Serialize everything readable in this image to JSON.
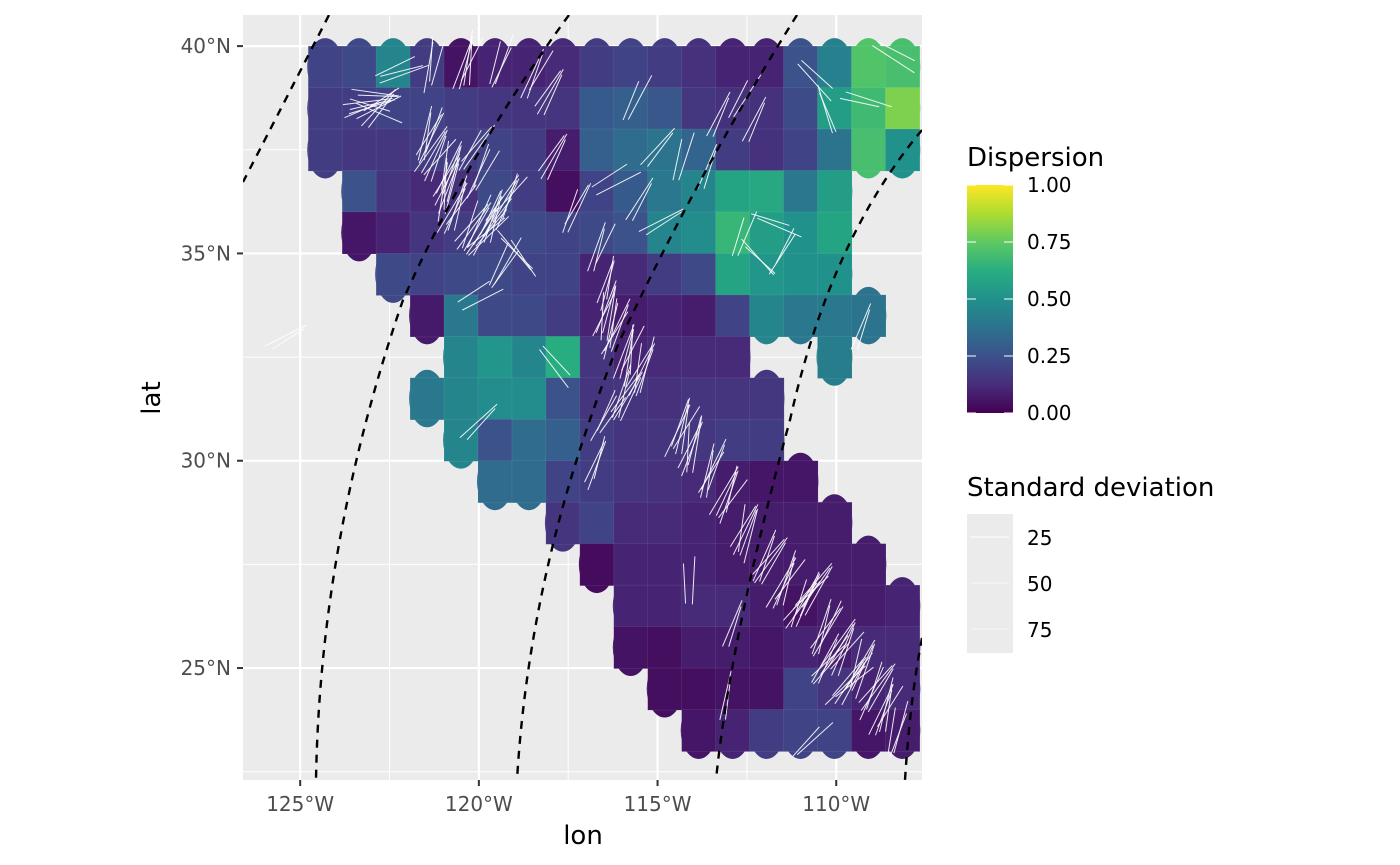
{
  "chart_data": {
    "type": "heatmap",
    "xlabel": "lon",
    "ylabel": "lat",
    "x_range": [
      -126.6,
      -107.6
    ],
    "y_range": [
      22.3,
      40.75
    ],
    "x_ticks": [
      {
        "value": -125,
        "label": "125°W"
      },
      {
        "value": -120,
        "label": "120°W"
      },
      {
        "value": -115,
        "label": "115°W"
      },
      {
        "value": -110,
        "label": "110°W"
      }
    ],
    "y_ticks": [
      {
        "value": 25,
        "label": "25°N"
      },
      {
        "value": 30,
        "label": "30°N"
      },
      {
        "value": 35,
        "label": "35°N"
      },
      {
        "value": 40,
        "label": "40°N"
      }
    ],
    "grid": true,
    "panel_background": "#ebebeb",
    "color_legend": {
      "title": "Dispersion",
      "scale": "viridis",
      "range": [
        0,
        1
      ],
      "breaks": [
        {
          "value": 0.0,
          "label": "0.00"
        },
        {
          "value": 0.25,
          "label": "0.25"
        },
        {
          "value": 0.5,
          "label": "0.50"
        },
        {
          "value": 0.75,
          "label": "0.75"
        },
        {
          "value": 1.0,
          "label": "1.00"
        }
      ]
    },
    "alpha_legend": {
      "title": "Standard deviation",
      "breaks": [
        {
          "value": 25,
          "label": "25"
        },
        {
          "value": 50,
          "label": "50"
        },
        {
          "value": 75,
          "label": "75"
        }
      ]
    },
    "grid_cell": {
      "lon_step": 0.95,
      "lat_step": 1.0
    },
    "cells": [
      [
        39.5,
        -124.3,
        0.2
      ],
      [
        39.5,
        -123.35,
        0.22
      ],
      [
        39.5,
        -122.4,
        0.45
      ],
      [
        39.5,
        -121.45,
        0.18
      ],
      [
        39.5,
        -120.5,
        0.05
      ],
      [
        39.5,
        -119.55,
        0.1
      ],
      [
        39.5,
        -118.6,
        0.1
      ],
      [
        39.5,
        -117.65,
        0.12
      ],
      [
        39.5,
        -116.7,
        0.18
      ],
      [
        39.5,
        -115.75,
        0.2
      ],
      [
        39.5,
        -114.8,
        0.18
      ],
      [
        39.5,
        -113.85,
        0.14
      ],
      [
        39.5,
        -112.9,
        0.1
      ],
      [
        39.5,
        -111.95,
        0.1
      ],
      [
        39.5,
        -111.0,
        0.25
      ],
      [
        39.5,
        -110.05,
        0.43
      ],
      [
        39.5,
        -109.1,
        0.72
      ],
      [
        39.5,
        -108.15,
        0.7
      ],
      [
        38.5,
        -124.3,
        0.18
      ],
      [
        38.5,
        -123.35,
        0.18
      ],
      [
        38.5,
        -122.4,
        0.2
      ],
      [
        38.5,
        -121.45,
        0.2
      ],
      [
        38.5,
        -120.5,
        0.18
      ],
      [
        38.5,
        -119.55,
        0.16
      ],
      [
        38.5,
        -118.6,
        0.15
      ],
      [
        38.5,
        -117.65,
        0.15
      ],
      [
        38.5,
        -116.7,
        0.28
      ],
      [
        38.5,
        -115.75,
        0.3
      ],
      [
        38.5,
        -114.8,
        0.27
      ],
      [
        38.5,
        -113.85,
        0.16
      ],
      [
        38.5,
        -112.9,
        0.14
      ],
      [
        38.5,
        -111.95,
        0.14
      ],
      [
        38.5,
        -111.0,
        0.23
      ],
      [
        38.5,
        -110.05,
        0.55
      ],
      [
        38.5,
        -109.1,
        0.68
      ],
      [
        38.5,
        -108.15,
        0.8
      ],
      [
        37.5,
        -124.3,
        0.18
      ],
      [
        37.5,
        -123.35,
        0.16
      ],
      [
        37.5,
        -122.4,
        0.16
      ],
      [
        37.5,
        -121.45,
        0.18
      ],
      [
        37.5,
        -120.5,
        0.18
      ],
      [
        37.5,
        -119.55,
        0.2
      ],
      [
        37.5,
        -118.6,
        0.18
      ],
      [
        37.5,
        -117.65,
        0.08
      ],
      [
        37.5,
        -116.7,
        0.3
      ],
      [
        37.5,
        -115.75,
        0.35
      ],
      [
        37.5,
        -114.8,
        0.38
      ],
      [
        37.5,
        -113.85,
        0.32
      ],
      [
        37.5,
        -112.9,
        0.18
      ],
      [
        37.5,
        -111.95,
        0.14
      ],
      [
        37.5,
        -111.0,
        0.2
      ],
      [
        37.5,
        -110.05,
        0.38
      ],
      [
        37.5,
        -109.1,
        0.7
      ],
      [
        37.5,
        -108.15,
        0.5
      ],
      [
        36.5,
        -123.35,
        0.25
      ],
      [
        36.5,
        -122.4,
        0.15
      ],
      [
        36.5,
        -121.45,
        0.12
      ],
      [
        36.5,
        -120.5,
        0.14
      ],
      [
        36.5,
        -119.55,
        0.22
      ],
      [
        36.5,
        -118.6,
        0.18
      ],
      [
        36.5,
        -117.65,
        0.04
      ],
      [
        36.5,
        -116.7,
        0.2
      ],
      [
        36.5,
        -115.75,
        0.28
      ],
      [
        36.5,
        -114.8,
        0.4
      ],
      [
        36.5,
        -113.85,
        0.45
      ],
      [
        36.5,
        -112.9,
        0.58
      ],
      [
        36.5,
        -111.95,
        0.6
      ],
      [
        36.5,
        -111.0,
        0.4
      ],
      [
        36.5,
        -110.05,
        0.55
      ],
      [
        35.5,
        -123.35,
        0.06
      ],
      [
        35.5,
        -122.4,
        0.1
      ],
      [
        35.5,
        -121.45,
        0.15
      ],
      [
        35.5,
        -120.5,
        0.18
      ],
      [
        35.5,
        -119.55,
        0.2
      ],
      [
        35.5,
        -118.6,
        0.22
      ],
      [
        35.5,
        -117.65,
        0.2
      ],
      [
        35.5,
        -116.7,
        0.22
      ],
      [
        35.5,
        -115.75,
        0.25
      ],
      [
        35.5,
        -114.8,
        0.45
      ],
      [
        35.5,
        -113.85,
        0.48
      ],
      [
        35.5,
        -112.9,
        0.66
      ],
      [
        35.5,
        -111.95,
        0.55
      ],
      [
        35.5,
        -111.0,
        0.5
      ],
      [
        35.5,
        -110.05,
        0.58
      ],
      [
        34.5,
        -122.4,
        0.22
      ],
      [
        34.5,
        -121.45,
        0.2
      ],
      [
        34.5,
        -120.5,
        0.22
      ],
      [
        34.5,
        -119.55,
        0.22
      ],
      [
        34.5,
        -118.6,
        0.2
      ],
      [
        34.5,
        -117.65,
        0.2
      ],
      [
        34.5,
        -116.7,
        0.1
      ],
      [
        34.5,
        -115.75,
        0.12
      ],
      [
        34.5,
        -114.8,
        0.18
      ],
      [
        34.5,
        -113.85,
        0.22
      ],
      [
        34.5,
        -112.9,
        0.58
      ],
      [
        34.5,
        -111.95,
        0.52
      ],
      [
        34.5,
        -111.0,
        0.5
      ],
      [
        34.5,
        -110.05,
        0.5
      ],
      [
        33.5,
        -121.45,
        0.07
      ],
      [
        33.5,
        -120.5,
        0.4
      ],
      [
        33.5,
        -119.55,
        0.22
      ],
      [
        33.5,
        -118.6,
        0.22
      ],
      [
        33.5,
        -117.65,
        0.18
      ],
      [
        33.5,
        -116.7,
        0.1
      ],
      [
        33.5,
        -115.75,
        0.08
      ],
      [
        33.5,
        -114.8,
        0.1
      ],
      [
        33.5,
        -113.85,
        0.08
      ],
      [
        33.5,
        -112.9,
        0.2
      ],
      [
        33.5,
        -111.95,
        0.45
      ],
      [
        33.5,
        -111.0,
        0.4
      ],
      [
        33.5,
        -110.05,
        0.4
      ],
      [
        33.5,
        -109.1,
        0.38
      ],
      [
        32.5,
        -120.5,
        0.45
      ],
      [
        32.5,
        -119.55,
        0.52
      ],
      [
        32.5,
        -118.6,
        0.45
      ],
      [
        32.5,
        -117.65,
        0.62
      ],
      [
        32.5,
        -116.7,
        0.15
      ],
      [
        32.5,
        -115.75,
        0.1
      ],
      [
        32.5,
        -114.8,
        0.12
      ],
      [
        32.5,
        -113.85,
        0.12
      ],
      [
        32.5,
        -112.9,
        0.12
      ],
      [
        32.5,
        -110.05,
        0.42
      ],
      [
        31.5,
        -121.45,
        0.4
      ],
      [
        31.5,
        -120.5,
        0.45
      ],
      [
        31.5,
        -119.55,
        0.48
      ],
      [
        31.5,
        -118.6,
        0.48
      ],
      [
        31.5,
        -117.65,
        0.25
      ],
      [
        31.5,
        -116.7,
        0.15
      ],
      [
        31.5,
        -115.75,
        0.15
      ],
      [
        31.5,
        -114.8,
        0.14
      ],
      [
        31.5,
        -113.85,
        0.15
      ],
      [
        31.5,
        -112.9,
        0.15
      ],
      [
        31.5,
        -111.95,
        0.16
      ],
      [
        30.5,
        -120.5,
        0.45
      ],
      [
        30.5,
        -119.55,
        0.25
      ],
      [
        30.5,
        -118.6,
        0.35
      ],
      [
        30.5,
        -117.65,
        0.3
      ],
      [
        30.5,
        -116.7,
        0.18
      ],
      [
        30.5,
        -115.75,
        0.15
      ],
      [
        30.5,
        -114.8,
        0.15
      ],
      [
        30.5,
        -113.85,
        0.16
      ],
      [
        30.5,
        -112.9,
        0.18
      ],
      [
        30.5,
        -111.95,
        0.18
      ],
      [
        29.5,
        -119.55,
        0.35
      ],
      [
        29.5,
        -118.6,
        0.35
      ],
      [
        29.5,
        -117.65,
        0.2
      ],
      [
        29.5,
        -116.7,
        0.18
      ],
      [
        29.5,
        -115.75,
        0.15
      ],
      [
        29.5,
        -114.8,
        0.14
      ],
      [
        29.5,
        -113.85,
        0.12
      ],
      [
        29.5,
        -112.9,
        0.08
      ],
      [
        29.5,
        -111.95,
        0.06
      ],
      [
        29.5,
        -111.0,
        0.06
      ],
      [
        28.5,
        -117.65,
        0.15
      ],
      [
        28.5,
        -116.7,
        0.2
      ],
      [
        28.5,
        -115.75,
        0.12
      ],
      [
        28.5,
        -114.8,
        0.12
      ],
      [
        28.5,
        -113.85,
        0.1
      ],
      [
        28.5,
        -112.9,
        0.08
      ],
      [
        28.5,
        -111.95,
        0.08
      ],
      [
        28.5,
        -111.0,
        0.08
      ],
      [
        28.5,
        -110.05,
        0.08
      ],
      [
        27.5,
        -116.7,
        0.03
      ],
      [
        27.5,
        -115.75,
        0.1
      ],
      [
        27.5,
        -114.8,
        0.1
      ],
      [
        27.5,
        -113.85,
        0.1
      ],
      [
        27.5,
        -112.9,
        0.08
      ],
      [
        27.5,
        -111.95,
        0.08
      ],
      [
        27.5,
        -111.0,
        0.08
      ],
      [
        27.5,
        -110.05,
        0.08
      ],
      [
        27.5,
        -109.1,
        0.08
      ],
      [
        26.5,
        -115.75,
        0.1
      ],
      [
        26.5,
        -114.8,
        0.1
      ],
      [
        26.5,
        -113.85,
        0.12
      ],
      [
        26.5,
        -112.9,
        0.12
      ],
      [
        26.5,
        -111.95,
        0.08
      ],
      [
        26.5,
        -111.0,
        0.05
      ],
      [
        26.5,
        -110.05,
        0.08
      ],
      [
        26.5,
        -109.1,
        0.08
      ],
      [
        26.5,
        -108.15,
        0.1
      ],
      [
        25.5,
        -115.75,
        0.05
      ],
      [
        25.5,
        -114.8,
        0.04
      ],
      [
        25.5,
        -113.85,
        0.08
      ],
      [
        25.5,
        -112.9,
        0.08
      ],
      [
        25.5,
        -111.95,
        0.06
      ],
      [
        25.5,
        -111.0,
        0.1
      ],
      [
        25.5,
        -110.05,
        0.08
      ],
      [
        25.5,
        -109.1,
        0.12
      ],
      [
        25.5,
        -108.15,
        0.12
      ],
      [
        24.5,
        -114.8,
        0.04
      ],
      [
        24.5,
        -113.85,
        0.04
      ],
      [
        24.5,
        -112.9,
        0.05
      ],
      [
        24.5,
        -111.95,
        0.05
      ],
      [
        24.5,
        -111.0,
        0.2
      ],
      [
        24.5,
        -110.05,
        0.15
      ],
      [
        24.5,
        -109.1,
        0.1
      ],
      [
        24.5,
        -108.15,
        0.12
      ],
      [
        23.5,
        -113.85,
        0.06
      ],
      [
        23.5,
        -112.9,
        0.1
      ],
      [
        23.5,
        -111.95,
        0.18
      ],
      [
        23.5,
        -111.0,
        0.2
      ],
      [
        23.5,
        -110.05,
        0.2
      ],
      [
        23.5,
        -109.1,
        0.06
      ],
      [
        23.5,
        -108.15,
        0.08
      ]
    ],
    "orientations": [
      [
        39.4,
        -122.2,
        70,
        1.0
      ],
      [
        39.6,
        -121.3,
        10,
        1.0
      ],
      [
        39.6,
        -120.3,
        15,
        1.2
      ],
      [
        39.6,
        -119.4,
        20,
        1.0
      ],
      [
        39.3,
        -118.4,
        25,
        1.1
      ],
      [
        38.9,
        -118.0,
        30,
        1.0
      ],
      [
        38.8,
        -115.6,
        25,
        0.9
      ],
      [
        39.2,
        -110.5,
        135,
        0.9
      ],
      [
        39.8,
        -108.4,
        120,
        0.9
      ],
      [
        38.6,
        -109.2,
        105,
        0.8
      ],
      [
        38.4,
        -110.2,
        160,
        0.9
      ],
      [
        38.2,
        -112.3,
        25,
        0.9
      ],
      [
        38.8,
        -112.6,
        30,
        0.9
      ],
      [
        38.7,
        -123.0,
        80,
        0.9
      ],
      [
        38.6,
        -122.8,
        60,
        0.9
      ],
      [
        38.5,
        -122.9,
        110,
        0.9
      ],
      [
        38.4,
        -122.7,
        40,
        0.9
      ],
      [
        38.8,
        -122.9,
        95,
        0.8
      ],
      [
        38.5,
        -123.1,
        70,
        0.8
      ],
      [
        37.9,
        -121.4,
        20,
        1.2
      ],
      [
        37.4,
        -121.2,
        30,
        1.2
      ],
      [
        37.0,
        -120.8,
        20,
        1.3
      ],
      [
        36.6,
        -120.9,
        15,
        1.4
      ],
      [
        36.1,
        -120.6,
        25,
        1.3
      ],
      [
        35.7,
        -120.1,
        30,
        1.3
      ],
      [
        35.5,
        -119.8,
        40,
        1.2
      ],
      [
        35.9,
        -119.6,
        25,
        1.2
      ],
      [
        37.6,
        -120.1,
        35,
        1.1
      ],
      [
        37.0,
        -119.9,
        25,
        1.1
      ],
      [
        36.3,
        -119.2,
        30,
        1.2
      ],
      [
        34.7,
        -119.3,
        30,
        1.1
      ],
      [
        35.0,
        -118.9,
        140,
        1.0
      ],
      [
        37.3,
        -117.9,
        30,
        1.0
      ],
      [
        36.1,
        -117.3,
        25,
        1.1
      ],
      [
        35.2,
        -116.6,
        20,
        1.0
      ],
      [
        34.3,
        -116.4,
        15,
        1.0
      ],
      [
        36.8,
        -116.2,
        60,
        0.9
      ],
      [
        36.2,
        -115.4,
        30,
        0.9
      ],
      [
        37.5,
        -115.0,
        40,
        0.9
      ],
      [
        37.3,
        -114.3,
        15,
        0.9
      ],
      [
        37.1,
        -113.5,
        20,
        0.8
      ],
      [
        38.4,
        -113.3,
        25,
        0.9
      ],
      [
        35.7,
        -111.7,
        110,
        0.8
      ],
      [
        35.1,
        -111.4,
        30,
        0.8
      ],
      [
        34.8,
        -112.2,
        135,
        0.8
      ],
      [
        35.4,
        -112.6,
        20,
        0.8
      ],
      [
        33.2,
        -109.2,
        20,
        0.9
      ],
      [
        35.8,
        -114.9,
        60,
        0.9
      ],
      [
        33.6,
        -116.4,
        15,
        1.2
      ],
      [
        33.2,
        -116.2,
        20,
        1.3
      ],
      [
        32.6,
        -115.8,
        15,
        1.3
      ],
      [
        32.2,
        -115.4,
        20,
        1.3
      ],
      [
        31.6,
        -115.9,
        25,
        1.2
      ],
      [
        30.8,
        -114.3,
        20,
        1.3
      ],
      [
        30.4,
        -114.0,
        15,
        1.3
      ],
      [
        29.8,
        -113.5,
        20,
        1.2
      ],
      [
        29.2,
        -113.0,
        25,
        1.2
      ],
      [
        28.3,
        -112.5,
        20,
        1.2
      ],
      [
        27.6,
        -111.9,
        30,
        1.2
      ],
      [
        27.1,
        -111.4,
        25,
        1.3
      ],
      [
        26.6,
        -110.9,
        30,
        1.3
      ],
      [
        26.0,
        -110.3,
        25,
        1.3
      ],
      [
        25.5,
        -109.8,
        30,
        1.3
      ],
      [
        25.0,
        -109.3,
        25,
        1.3
      ],
      [
        24.5,
        -108.9,
        30,
        1.3
      ],
      [
        24.0,
        -108.6,
        20,
        1.2
      ],
      [
        23.5,
        -108.3,
        15,
        1.1
      ],
      [
        25.2,
        -110.2,
        35,
        1.2
      ],
      [
        24.7,
        -109.6,
        40,
        1.2
      ],
      [
        26.9,
        -110.6,
        35,
        1.2
      ],
      [
        31.1,
        -116.4,
        30,
        1.0
      ],
      [
        30.0,
        -116.7,
        20,
        1.0
      ],
      [
        27.0,
        -114.1,
        0,
        0.8
      ],
      [
        26.0,
        -112.8,
        20,
        0.9
      ],
      [
        24.3,
        -113.1,
        10,
        0.9
      ],
      [
        23.3,
        -110.7,
        45,
        0.8
      ],
      [
        31.0,
        -119.9,
        45,
        0.9
      ],
      [
        32.3,
        -117.9,
        140,
        0.8
      ],
      [
        34.0,
        -120.0,
        60,
        0.7
      ],
      [
        32.9,
        -125.3,
        60,
        0.7
      ]
    ]
  }
}
